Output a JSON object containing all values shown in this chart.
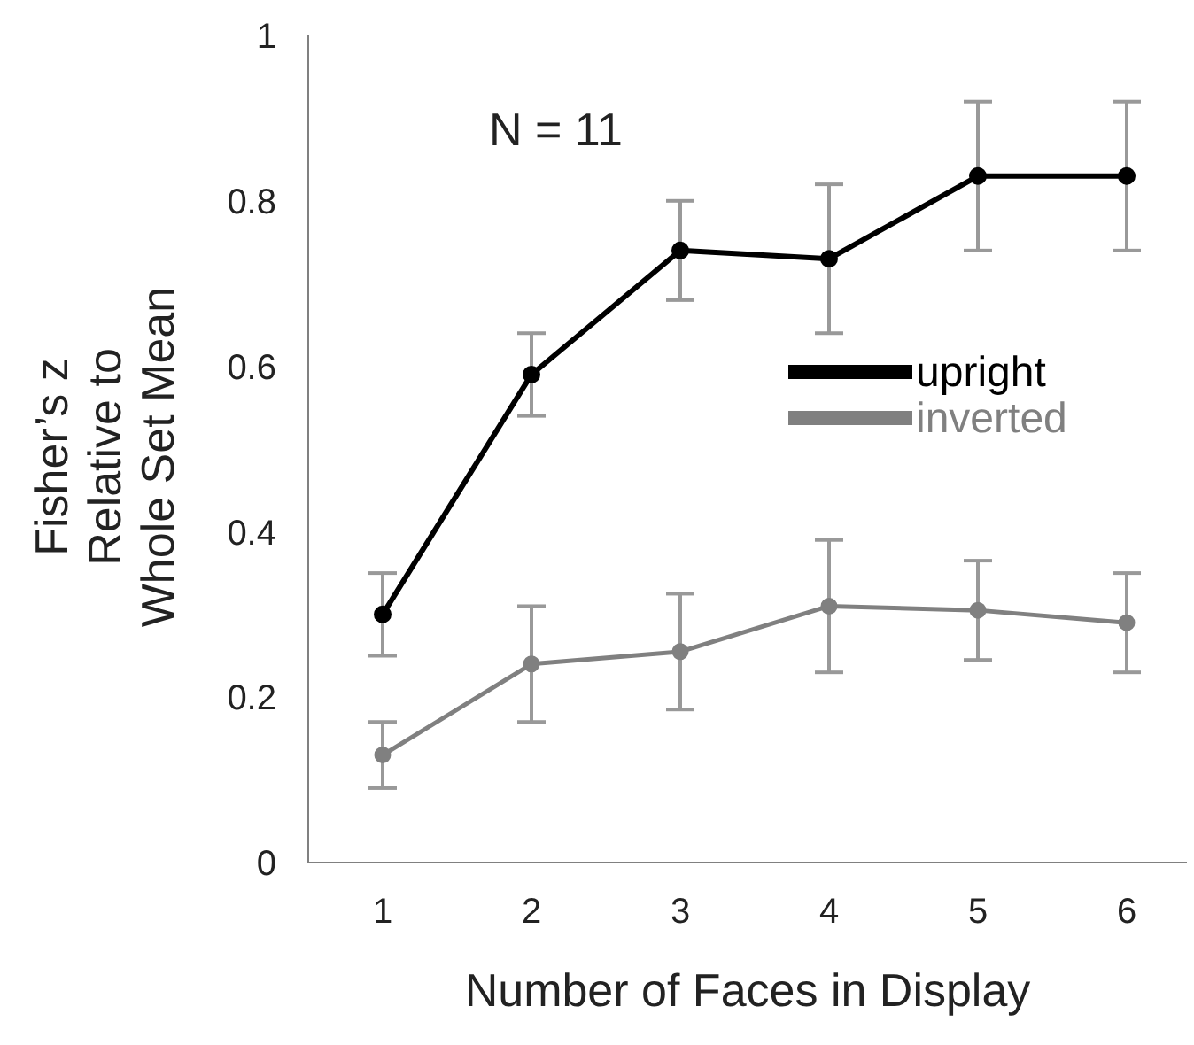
{
  "chart_data": {
    "type": "line",
    "xlabel": "Number of Faces in Display",
    "ylabel": "Fisher’s z\nRelative to\nWhole Set Mean",
    "categories": [
      "1",
      "2",
      "3",
      "4",
      "5",
      "6"
    ],
    "series": [
      {
        "name": "upright",
        "color": "#000000",
        "values": [
          0.3,
          0.59,
          0.74,
          0.73,
          0.83,
          0.83
        ],
        "errors": [
          0.05,
          0.05,
          0.06,
          0.09,
          0.09,
          0.09
        ]
      },
      {
        "name": "inverted",
        "color": "#808080",
        "values": [
          0.13,
          0.24,
          0.255,
          0.31,
          0.305,
          0.29
        ],
        "errors": [
          0.04,
          0.07,
          0.07,
          0.08,
          0.06,
          0.06
        ]
      }
    ],
    "ylim": [
      0,
      1
    ],
    "yticks": [
      0,
      0.2,
      0.4,
      0.6,
      0.8,
      1
    ],
    "grid": false,
    "legend": "right",
    "marker": "circle",
    "line_style": "solid",
    "annotations": [
      "N = 11"
    ]
  }
}
